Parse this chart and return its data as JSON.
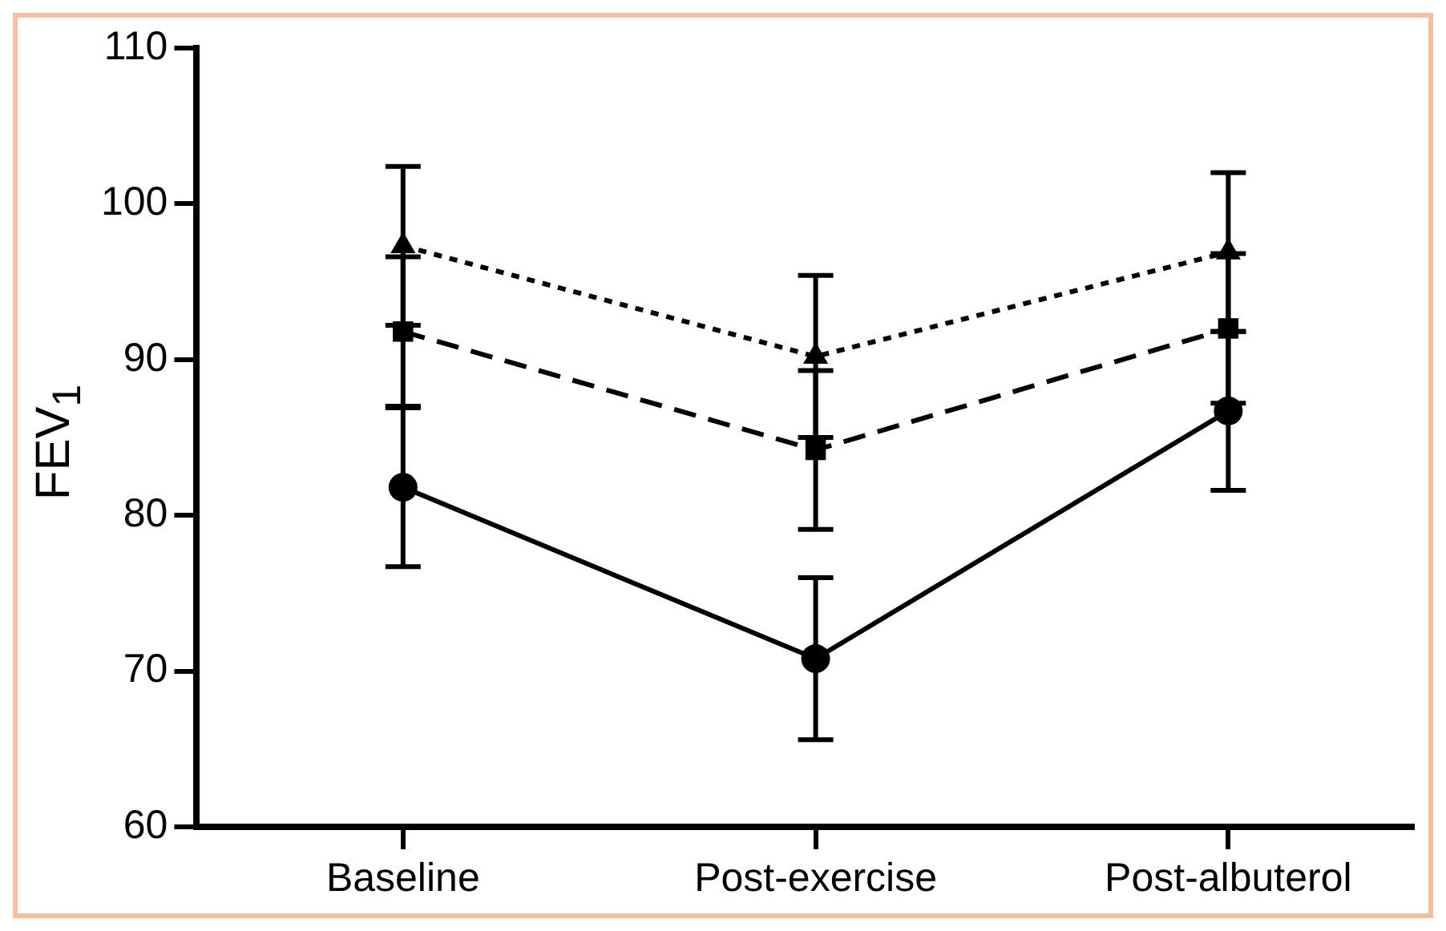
{
  "chart_data": {
    "type": "line",
    "ylabel": "FEV$_{1}$",
    "categories": [
      "Baseline",
      "Post-exercise",
      "Post-albuterol"
    ],
    "series": [
      {
        "color": "#000000",
        "marker": "circle",
        "line_style": "solid",
        "values": [
          81.8,
          70.8,
          86.7
        ],
        "errors": [
          5.1,
          5.2,
          5.1
        ]
      },
      {
        "color": "#000000",
        "marker": "square",
        "line_style": "dashed",
        "values": [
          91.8,
          84.2,
          92.0
        ],
        "errors": [
          4.8,
          5.1,
          4.8
        ]
      },
      {
        "color": "#000000",
        "marker": "triangle",
        "line_style": "dotted",
        "values": [
          97.3,
          90.2,
          96.9
        ],
        "errors": [
          5.1,
          5.2,
          5.1
        ]
      }
    ],
    "ylim": [
      60,
      110
    ],
    "yticks": [
      60,
      70,
      80,
      90,
      100,
      110
    ],
    "grid": false,
    "legend": false
  }
}
